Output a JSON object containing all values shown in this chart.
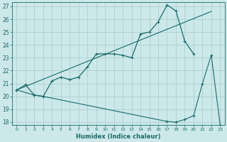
{
  "xlabel": "Humidex (Indice chaleur)",
  "xlim": [
    -0.5,
    23.5
  ],
  "ylim": [
    17.8,
    27.3
  ],
  "yticks": [
    18,
    19,
    20,
    21,
    22,
    23,
    24,
    25,
    26,
    27
  ],
  "xticks": [
    0,
    1,
    2,
    3,
    4,
    5,
    6,
    7,
    8,
    9,
    10,
    11,
    12,
    13,
    14,
    15,
    16,
    17,
    18,
    19,
    20,
    21,
    22,
    23
  ],
  "bg_color": "#cce8e8",
  "line_color": "#1a6b6b",
  "grid_color": "#a8cccc",
  "line1_x": [
    0,
    1,
    2,
    3,
    4,
    5,
    6,
    7,
    8,
    9,
    10,
    11,
    12,
    13,
    14,
    15,
    16,
    17,
    18,
    19,
    20
  ],
  "line1_y": [
    20.5,
    20.9,
    20.1,
    20.0,
    21.2,
    21.5,
    21.3,
    21.5,
    22.3,
    23.3,
    23.3,
    23.3,
    23.2,
    23.0,
    24.85,
    25.0,
    25.8,
    27.1,
    26.65,
    24.3,
    23.3
  ],
  "line2_x": [
    0,
    22
  ],
  "line2_y": [
    20.5,
    26.6
  ],
  "line3_x": [
    0,
    2,
    3,
    17,
    18,
    19,
    20,
    21,
    22,
    23
  ],
  "line3_y": [
    20.5,
    20.1,
    20.0,
    18.05,
    18.0,
    18.2,
    18.5,
    21.0,
    23.2,
    17.8
  ]
}
